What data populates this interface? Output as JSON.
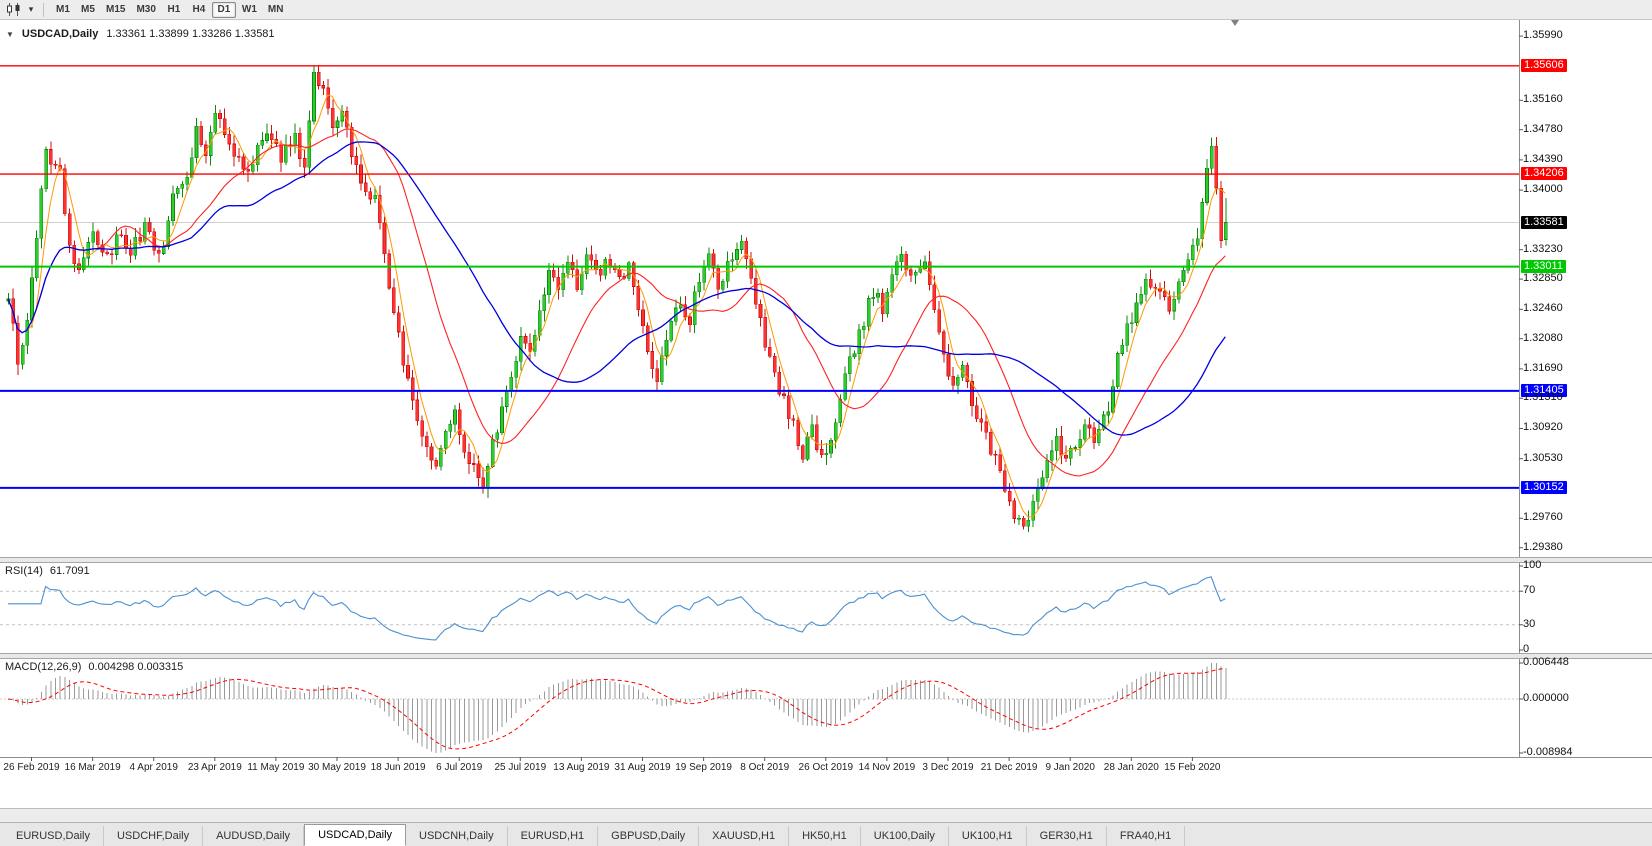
{
  "icons": {
    "collapse_arrow": "▼",
    "dropdown": "▾"
  },
  "toolbar": {
    "chart_type_icon": "candlestick-chart-icon",
    "timeframes": [
      "M1",
      "M5",
      "M15",
      "M30",
      "H1",
      "H4",
      "D1",
      "W1",
      "MN"
    ],
    "active_timeframe": "D1"
  },
  "chart_header": {
    "symbol_period": "USDCAD,Daily",
    "ohlc_text": "1.33361 1.33899 1.33286 1.33581"
  },
  "price_axis": [
    {
      "text": "1.35990"
    },
    {
      "text": "1.35606",
      "box": "#ff0000"
    },
    {
      "text": "1.35160"
    },
    {
      "text": "1.34780"
    },
    {
      "text": "1.34390"
    },
    {
      "text": "1.34206",
      "box": "#ff0000"
    },
    {
      "text": "1.34000"
    },
    {
      "text": "1.33581",
      "box": "#000000"
    },
    {
      "text": "1.33230"
    },
    {
      "text": "1.33011",
      "box": "#00c800"
    },
    {
      "text": "1.32850"
    },
    {
      "text": "1.32460"
    },
    {
      "text": "1.32080"
    },
    {
      "text": "1.31690"
    },
    {
      "text": "1.31405",
      "box": "#0000ff"
    },
    {
      "text": "1.31310"
    },
    {
      "text": "1.30920"
    },
    {
      "text": "1.30530"
    },
    {
      "text": "1.30152",
      "box": "#0000ff"
    },
    {
      "text": "1.29760"
    },
    {
      "text": "1.29380"
    }
  ],
  "date_axis": [
    "26 Feb 2019",
    "16 Mar 2019",
    "4 Apr 2019",
    "23 Apr 2019",
    "11 May 2019",
    "30 May 2019",
    "18 Jun 2019",
    "6 Jul 2019",
    "25 Jul 2019",
    "13 Aug 2019",
    "31 Aug 2019",
    "19 Sep 2019",
    "8 Oct 2019",
    "26 Oct 2019",
    "14 Nov 2019",
    "3 Dec 2019",
    "21 Dec 2019",
    "9 Jan 2020",
    "28 Jan 2020",
    "15 Feb 2020"
  ],
  "indicators": {
    "rsi": {
      "label": "RSI(14)",
      "value": "61.7091",
      "axis": [
        "100",
        "70",
        "30",
        "0"
      ],
      "levels": [
        70,
        30
      ],
      "line_color": "#4a90d2"
    },
    "macd": {
      "label": "MACD(12,26,9)",
      "values": "0.004298 0.003315",
      "axis": [
        "0.006448",
        "0.000000",
        "-0.008984"
      ],
      "histogram_color": "#9a9a9a",
      "signal_color": "#ff0000"
    }
  },
  "tabs": [
    {
      "label": "EURUSD,Daily"
    },
    {
      "label": "USDCHF,Daily"
    },
    {
      "label": "AUDUSD,Daily"
    },
    {
      "label": "USDCAD,Daily",
      "active": true
    },
    {
      "label": "USDCNH,Daily"
    },
    {
      "label": "EURUSD,H1"
    },
    {
      "label": "GBPUSD,Daily"
    },
    {
      "label": "XAUUSD,H1"
    },
    {
      "label": "HK50,H1"
    },
    {
      "label": "UK100,Daily"
    },
    {
      "label": "UK100,H1"
    },
    {
      "label": "GER30,H1"
    },
    {
      "label": "FRA40,H1"
    }
  ],
  "colors": {
    "candle_up": "#2ecc2e",
    "candle_up_wick": "#0b8a0b",
    "candle_down": "#ff3232",
    "candle_down_wick": "#cc1111",
    "ma_fast": "#ff9900",
    "ma_medium": "#ff2222",
    "ma_slow": "#0000e0",
    "current_price_line": "#d0d0d0"
  },
  "chart_data": {
    "type": "candlestick",
    "symbol": "USDCAD",
    "period": "Daily",
    "current_bar": {
      "open": 1.33361,
      "high": 1.33899,
      "low": 1.33286,
      "close": 1.33581
    },
    "current_price": 1.33581,
    "visible_range": {
      "price_top": 1.3612,
      "price_bottom": 1.2926
    },
    "levels": [
      {
        "price": 1.35606,
        "color": "#ff0000",
        "width": 1.4
      },
      {
        "price": 1.34206,
        "color": "#ff0000",
        "width": 1.4
      },
      {
        "price": 1.33011,
        "color": "#00c800",
        "width": 2
      },
      {
        "price": 1.31405,
        "color": "#0000ff",
        "width": 2
      },
      {
        "price": 1.30152,
        "color": "#0000ff",
        "width": 2
      }
    ],
    "price_waypoints": [
      [
        0,
        1.326
      ],
      [
        2,
        1.318
      ],
      [
        4,
        1.3235
      ],
      [
        8,
        1.3445
      ],
      [
        11,
        1.342
      ],
      [
        13,
        1.333
      ],
      [
        15,
        1.3295
      ],
      [
        18,
        1.335
      ],
      [
        21,
        1.331
      ],
      [
        24,
        1.3345
      ],
      [
        26,
        1.332
      ],
      [
        29,
        1.3355
      ],
      [
        32,
        1.331
      ],
      [
        35,
        1.339
      ],
      [
        38,
        1.3425
      ],
      [
        40,
        1.3475
      ],
      [
        42,
        1.3445
      ],
      [
        44,
        1.3505
      ],
      [
        47,
        1.346
      ],
      [
        50,
        1.3425
      ],
      [
        52,
        1.3435
      ],
      [
        55,
        1.348
      ],
      [
        58,
        1.3445
      ],
      [
        61,
        1.3465
      ],
      [
        63,
        1.3425
      ],
      [
        65,
        1.3555
      ],
      [
        67,
        1.3535
      ],
      [
        69,
        1.3485
      ],
      [
        71,
        1.351
      ],
      [
        73,
        1.3445
      ],
      [
        75,
        1.341
      ],
      [
        78,
        1.339
      ],
      [
        80,
        1.332
      ],
      [
        82,
        1.3235
      ],
      [
        84,
        1.318
      ],
      [
        86,
        1.313
      ],
      [
        88,
        1.308
      ],
      [
        91,
        1.305
      ],
      [
        93,
        1.3085
      ],
      [
        95,
        1.311
      ],
      [
        97,
        1.306
      ],
      [
        99,
        1.304
      ],
      [
        101,
        1.3022
      ],
      [
        103,
        1.307
      ],
      [
        105,
        1.3115
      ],
      [
        107,
        1.316
      ],
      [
        109,
        1.3215
      ],
      [
        111,
        1.3185
      ],
      [
        113,
        1.3245
      ],
      [
        115,
        1.329
      ],
      [
        117,
        1.327
      ],
      [
        119,
        1.331
      ],
      [
        121,
        1.328
      ],
      [
        123,
        1.332
      ],
      [
        125,
        1.329
      ],
      [
        127,
        1.331
      ],
      [
        130,
        1.328
      ],
      [
        132,
        1.331
      ],
      [
        134,
        1.324
      ],
      [
        136,
        1.319
      ],
      [
        138,
        1.315
      ],
      [
        140,
        1.321
      ],
      [
        143,
        1.326
      ],
      [
        145,
        1.323
      ],
      [
        147,
        1.329
      ],
      [
        149,
        1.332
      ],
      [
        151,
        1.328
      ],
      [
        153,
        1.33
      ],
      [
        156,
        1.333
      ],
      [
        158,
        1.329
      ],
      [
        160,
        1.323
      ],
      [
        162,
        1.318
      ],
      [
        164,
        1.314
      ],
      [
        166,
        1.311
      ],
      [
        169,
        1.306
      ],
      [
        171,
        1.309
      ],
      [
        173,
        1.305
      ],
      [
        175,
        1.307
      ],
      [
        177,
        1.313
      ],
      [
        179,
        1.318
      ],
      [
        182,
        1.323
      ],
      [
        184,
        1.327
      ],
      [
        186,
        1.325
      ],
      [
        188,
        1.329
      ],
      [
        190,
        1.331
      ],
      [
        193,
        1.329
      ],
      [
        195,
        1.331
      ],
      [
        197,
        1.325
      ],
      [
        199,
        1.318
      ],
      [
        201,
        1.314
      ],
      [
        203,
        1.317
      ],
      [
        205,
        1.312
      ],
      [
        208,
        1.308
      ],
      [
        210,
        1.305
      ],
      [
        212,
        1.301
      ],
      [
        214,
        1.298
      ],
      [
        216,
        1.2962
      ],
      [
        218,
        1.299
      ],
      [
        221,
        1.306
      ],
      [
        223,
        1.308
      ],
      [
        225,
        1.305
      ],
      [
        227,
        1.307
      ],
      [
        229,
        1.31
      ],
      [
        231,
        1.308
      ],
      [
        234,
        1.312
      ],
      [
        236,
        1.318
      ],
      [
        238,
        1.322
      ],
      [
        240,
        1.325
      ],
      [
        242,
        1.329
      ],
      [
        244,
        1.327
      ],
      [
        247,
        1.3245
      ],
      [
        249,
        1.328
      ],
      [
        251,
        1.33
      ],
      [
        253,
        1.334
      ],
      [
        255,
        1.3425
      ],
      [
        256,
        1.3462
      ],
      [
        257,
        1.34
      ],
      [
        258,
        1.3336
      ],
      [
        259,
        1.33581
      ]
    ]
  }
}
